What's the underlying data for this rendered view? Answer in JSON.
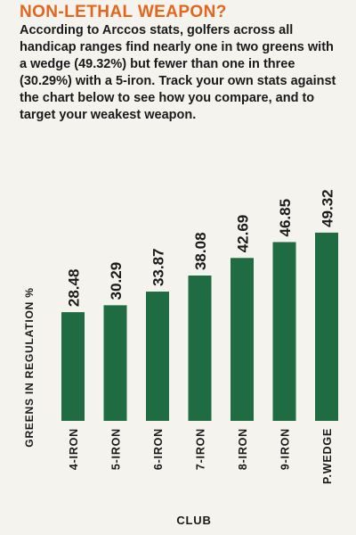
{
  "headline": "NON-LETHAL WEAPON?",
  "intro": "According to Arccos stats, golfers across all handicap ranges find nearly one in two greens with a wedge (49.32%) but fewer than one in three (30.29%) with a 5-iron. Track your own stats against the chart below to see how you compare, and to target your weakest weapon.",
  "colors": {
    "headline": "#e2661d",
    "bar": "#1f6b42",
    "text": "#1a1a1a",
    "background": "#f4f3ee"
  },
  "chart_data": {
    "type": "bar",
    "title": "",
    "xlabel": "CLUB",
    "ylabel": "GREENS IN REGULATION %",
    "categories": [
      "4-IRON",
      "5-IRON",
      "6-IRON",
      "7-IRON",
      "8-IRON",
      "9-IRON",
      "P.WEDGE"
    ],
    "values": [
      28.48,
      30.29,
      33.87,
      38.08,
      42.69,
      46.85,
      49.32
    ],
    "value_labels": [
      "28.48",
      "30.29",
      "33.87",
      "38.08",
      "42.69",
      "46.85",
      "49.32"
    ],
    "ylim": [
      0,
      50
    ],
    "grid": false,
    "legend": "none",
    "data_labels": "above bars, rotated vertical"
  }
}
